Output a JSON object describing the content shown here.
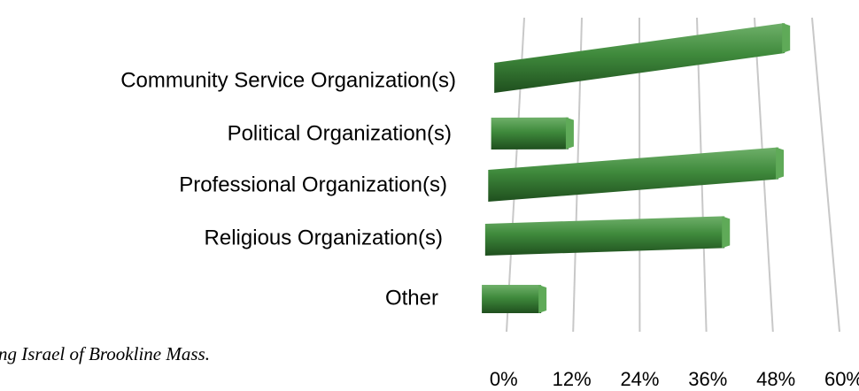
{
  "chart_data": {
    "type": "bar",
    "categories": [
      "Community Service Organization(s)",
      "Political Organization(s)",
      "Professional Organization(s)",
      "Religious Organization(s)",
      "Other"
    ],
    "values": [
      54,
      10,
      51,
      40,
      6
    ],
    "color": "#3f8a3c",
    "xlim": [
      0,
      60
    ],
    "xticks": [
      {
        "value": 0,
        "label": "0%"
      },
      {
        "value": 12,
        "label": "12%"
      },
      {
        "value": 24,
        "label": "24%"
      },
      {
        "value": 36,
        "label": "36%"
      },
      {
        "value": 48,
        "label": "48%"
      },
      {
        "value": 60,
        "label": "60%"
      }
    ],
    "grid": true,
    "caption": "ng Israel of Brookline Mass."
  }
}
